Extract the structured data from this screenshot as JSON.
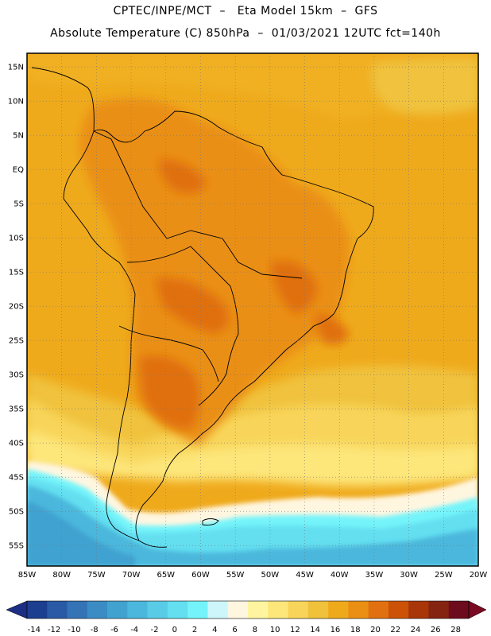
{
  "header": {
    "line1": "CPTEC/INPE/MCT  –   Eta Model 15km  –  GFS",
    "line2": "Absolute Temperature (C) 850hPa  –  01/03/2021 12UTC fct=140h"
  },
  "map": {
    "lat_labels": [
      "15N",
      "10N",
      "5N",
      "EQ",
      "5S",
      "10S",
      "15S",
      "20S",
      "25S",
      "30S",
      "35S",
      "40S",
      "45S",
      "50S",
      "55S"
    ],
    "lon_labels": [
      "85W",
      "80W",
      "75W",
      "70W",
      "65W",
      "60W",
      "55W",
      "50W",
      "45W",
      "40W",
      "35W",
      "30W",
      "25W",
      "20W"
    ],
    "lat_range": [
      17,
      -58
    ],
    "lon_range": [
      -85,
      -20
    ]
  },
  "colorbar": {
    "ticks": [
      "-14",
      "-12",
      "-10",
      "-8",
      "-6",
      "-4",
      "-2",
      "0",
      "2",
      "4",
      "6",
      "8",
      "10",
      "12",
      "14",
      "16",
      "18",
      "20",
      "22",
      "24",
      "26",
      "28"
    ],
    "colors": [
      "#1c3f8f",
      "#2a5aa6",
      "#3473b6",
      "#3b8cc4",
      "#41a2d0",
      "#4bb7dc",
      "#5acbe6",
      "#63dff0",
      "#74f4fa",
      "#cdf6fb",
      "#fff6e0",
      "#fff5a0",
      "#fde67a",
      "#f8d55a",
      "#f0c23c",
      "#efaa1c",
      "#ea8f14",
      "#e07010",
      "#cc5208",
      "#a83608",
      "#862412",
      "#6d0c1c"
    ],
    "under_color": "#1c2f84",
    "over_color": "#7a0a22"
  }
}
